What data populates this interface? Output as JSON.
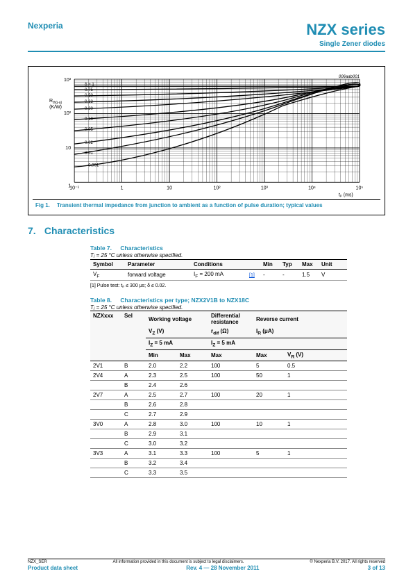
{
  "header": {
    "brand": "Nexperia",
    "title": "NZX series",
    "subtitle": "Single Zener diodes"
  },
  "figure": {
    "id_text": "006aab001",
    "y_axis_label": "Rth(j-a)",
    "y_axis_unit": "(K/W)",
    "y_ticks": [
      "1",
      "10",
      "10²",
      "10³"
    ],
    "x_ticks": [
      "10⁻¹",
      "1",
      "10",
      "10²",
      "10³",
      "10⁴",
      "10⁵"
    ],
    "x_label": "tₚ (ms)",
    "delta_labels": [
      "δ = 1",
      "0.75",
      "0.50",
      "0.33",
      "0.20",
      "0.10",
      "0.05",
      "0.02",
      "0.01",
      "0.001"
    ],
    "caption_label": "Fig 1.",
    "caption_text": "Transient thermal impedance from junction to ambient as a function of pulse duration; typical values"
  },
  "section": {
    "number": "7.",
    "title": "Characteristics"
  },
  "table7": {
    "title_label": "Table 7.",
    "title_text": "Characteristics",
    "subtitle": "Tⱼ = 25 °C unless otherwise specified.",
    "columns": [
      "Symbol",
      "Parameter",
      "Conditions",
      "",
      "Min",
      "Typ",
      "Max",
      "Unit"
    ],
    "row": {
      "symbol": "V_F",
      "parameter": "forward voltage",
      "conditions": "I_F = 200 mA",
      "ref": "[1]",
      "min": "-",
      "typ": "-",
      "max": "1.5",
      "unit": "V"
    },
    "footnote": "[1]   Pulse test: tₚ ≤ 300 μs; δ ≤ 0.02."
  },
  "table8": {
    "title_label": "Table 8.",
    "title_text": "Characteristics per type; NZX2V1B to NZX18C",
    "subtitle": "Tⱼ = 25 °C unless otherwise specified.",
    "h1": {
      "c1": "NZXxxx",
      "c2": "Sel",
      "c3": "Working voltage",
      "c4": "Differential resistance",
      "c5": "Reverse current"
    },
    "h2": {
      "c3": "V_Z (V)",
      "c4": "r_dif (Ω)",
      "c5": "I_R (μA)"
    },
    "h3": {
      "c3": "I_Z = 5 mA",
      "c4": "I_Z = 5 mA"
    },
    "h4": {
      "c3a": "Min",
      "c3b": "Max",
      "c4": "Max",
      "c5a": "Max",
      "c5b": "V_R (V)"
    },
    "rows": [
      {
        "nzx": "2V1",
        "sel": "B",
        "min": "2.0",
        "max": "2.2",
        "rdif": "100",
        "irmax": "5",
        "vr": "0.5"
      },
      {
        "nzx": "2V4",
        "sel": "A",
        "min": "2.3",
        "max": "2.5",
        "rdif": "100",
        "irmax": "50",
        "vr": "1"
      },
      {
        "nzx": "",
        "sel": "B",
        "min": "2.4",
        "max": "2.6",
        "rdif": "",
        "irmax": "",
        "vr": ""
      },
      {
        "nzx": "2V7",
        "sel": "A",
        "min": "2.5",
        "max": "2.7",
        "rdif": "100",
        "irmax": "20",
        "vr": "1"
      },
      {
        "nzx": "",
        "sel": "B",
        "min": "2.6",
        "max": "2.8",
        "rdif": "",
        "irmax": "",
        "vr": ""
      },
      {
        "nzx": "",
        "sel": "C",
        "min": "2.7",
        "max": "2.9",
        "rdif": "",
        "irmax": "",
        "vr": ""
      },
      {
        "nzx": "3V0",
        "sel": "A",
        "min": "2.8",
        "max": "3.0",
        "rdif": "100",
        "irmax": "10",
        "vr": "1"
      },
      {
        "nzx": "",
        "sel": "B",
        "min": "2.9",
        "max": "3.1",
        "rdif": "",
        "irmax": "",
        "vr": ""
      },
      {
        "nzx": "",
        "sel": "C",
        "min": "3.0",
        "max": "3.2",
        "rdif": "",
        "irmax": "",
        "vr": ""
      },
      {
        "nzx": "3V3",
        "sel": "A",
        "min": "3.1",
        "max": "3.3",
        "rdif": "100",
        "irmax": "5",
        "vr": "1"
      },
      {
        "nzx": "",
        "sel": "B",
        "min": "3.2",
        "max": "3.4",
        "rdif": "",
        "irmax": "",
        "vr": ""
      },
      {
        "nzx": "",
        "sel": "C",
        "min": "3.3",
        "max": "3.5",
        "rdif": "",
        "irmax": "",
        "vr": ""
      }
    ]
  },
  "footer": {
    "doc_id": "NZX_SER",
    "disclaimer": "All information provided in this document is subject to legal disclaimers.",
    "copyright": "© Nexperia B.V. 2017. All rights reserved",
    "left": "Product data sheet",
    "center": "Rev. 4 — 28 November 2011",
    "right": "3 of 13"
  }
}
